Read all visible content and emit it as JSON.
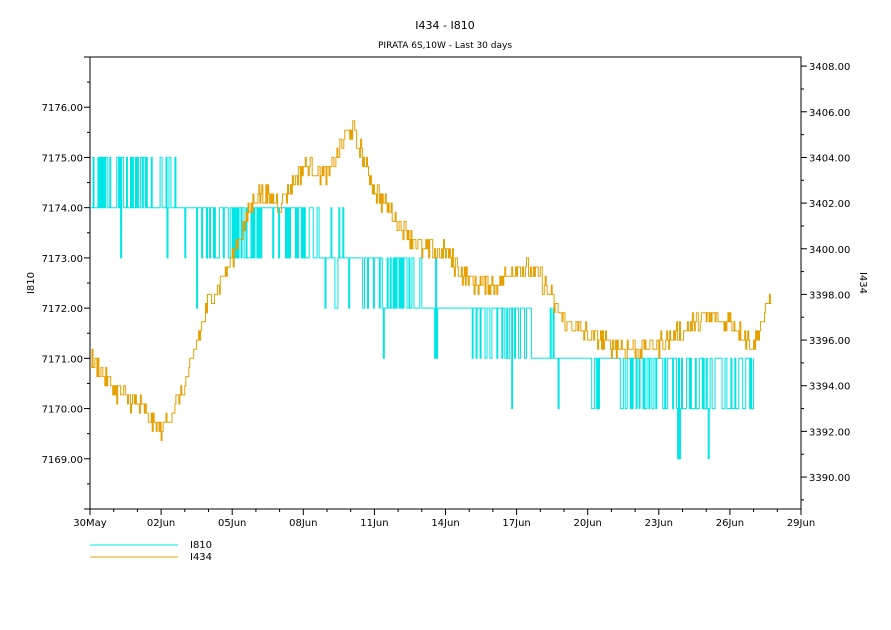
{
  "chart_data": {
    "type": "line",
    "title": "I434 - I810",
    "subtitle": "PIRATA 6S,10W - Last 30 days",
    "x_axis": {
      "type": "date",
      "range": [
        "2024-05-30",
        "2024-06-29"
      ],
      "tick_labels": [
        "30May",
        "02Jun",
        "05Jun",
        "08Jun",
        "11Jun",
        "14Jun",
        "17Jun",
        "20Jun",
        "23Jun",
        "26Jun",
        "29Jun"
      ]
    },
    "y_left": {
      "label": "I810",
      "range": [
        7168,
        7177
      ],
      "ticks": [
        7169,
        7170,
        7171,
        7172,
        7173,
        7174,
        7175,
        7176
      ],
      "tick_labels": [
        "7169.00",
        "7170.00",
        "7171.00",
        "7172.00",
        "7173.00",
        "7174.00",
        "7175.00",
        "7176.00"
      ]
    },
    "y_right": {
      "label": "I434",
      "range": [
        3388.6,
        3408.4
      ],
      "ticks": [
        3390,
        3392,
        3394,
        3396,
        3398,
        3400,
        3402,
        3404,
        3406,
        3408
      ],
      "tick_labels": [
        "3390.00",
        "3392.00",
        "3394.00",
        "3396.00",
        "3398.00",
        "3400.00",
        "3402.00",
        "3404.00",
        "3406.00",
        "3408.00"
      ]
    },
    "legend": {
      "placement": "bottom-left"
    },
    "series": [
      {
        "name": "I810",
        "axis": "left",
        "color": "#00e5e5",
        "style": "oscillating",
        "points": [
          [
            "2024-05-30",
            7174.5
          ],
          [
            "2024-05-31",
            7174.5
          ],
          [
            "2024-06-01",
            7174.4
          ],
          [
            "2024-06-02",
            7174.3
          ],
          [
            "2024-06-03",
            7174.1
          ],
          [
            "2024-06-04",
            7173.6
          ],
          [
            "2024-06-05",
            7173.6
          ],
          [
            "2024-06-06",
            7173.7
          ],
          [
            "2024-06-07",
            7173.8
          ],
          [
            "2024-06-08",
            7173.6
          ],
          [
            "2024-06-09",
            7173.4
          ],
          [
            "2024-06-10",
            7173.1
          ],
          [
            "2024-06-11",
            7172.7
          ],
          [
            "2024-06-12",
            7172.5
          ],
          [
            "2024-06-13",
            7172.3
          ],
          [
            "2024-06-14",
            7172.0
          ],
          [
            "2024-06-15",
            7171.9
          ],
          [
            "2024-06-16",
            7171.7
          ],
          [
            "2024-06-17",
            7171.6
          ],
          [
            "2024-06-18",
            7171.3
          ],
          [
            "2024-06-19",
            7171.0
          ],
          [
            "2024-06-20",
            7170.9
          ],
          [
            "2024-06-21",
            7170.8
          ],
          [
            "2024-06-22",
            7170.7
          ],
          [
            "2024-06-23",
            7170.7
          ],
          [
            "2024-06-24",
            7170.6
          ],
          [
            "2024-06-25",
            7170.5
          ],
          [
            "2024-06-26",
            7170.5
          ],
          [
            "2024-06-27",
            7170.5
          ]
        ]
      },
      {
        "name": "I434",
        "axis": "right",
        "color": "#e6a000",
        "style": "stepped",
        "points": [
          [
            "2024-05-30",
            3395.2
          ],
          [
            "2024-05-31",
            3393.8
          ],
          [
            "2024-06-01",
            3393.2
          ],
          [
            "2024-06-02",
            3392.0
          ],
          [
            "2024-06-03",
            3394.0
          ],
          [
            "2024-06-04",
            3397.6
          ],
          [
            "2024-06-05",
            3399.6
          ],
          [
            "2024-06-06",
            3402.4
          ],
          [
            "2024-06-07",
            3402.0
          ],
          [
            "2024-06-08",
            3403.6
          ],
          [
            "2024-06-09",
            3403.2
          ],
          [
            "2024-06-10",
            3405.4
          ],
          [
            "2024-06-11",
            3402.6
          ],
          [
            "2024-06-12",
            3401.2
          ],
          [
            "2024-06-13",
            3400.0
          ],
          [
            "2024-06-14",
            3399.8
          ],
          [
            "2024-06-15",
            3398.6
          ],
          [
            "2024-06-16",
            3398.4
          ],
          [
            "2024-06-17",
            3399.2
          ],
          [
            "2024-06-18",
            3398.8
          ],
          [
            "2024-06-19",
            3396.8
          ],
          [
            "2024-06-20",
            3396.2
          ],
          [
            "2024-06-21",
            3395.8
          ],
          [
            "2024-06-22",
            3395.6
          ],
          [
            "2024-06-23",
            3395.8
          ],
          [
            "2024-06-24",
            3396.4
          ],
          [
            "2024-06-25",
            3397.0
          ],
          [
            "2024-06-26",
            3396.8
          ],
          [
            "2024-06-27",
            3395.8
          ],
          [
            "2024-06-27T18:00",
            3398.0
          ]
        ]
      }
    ]
  }
}
